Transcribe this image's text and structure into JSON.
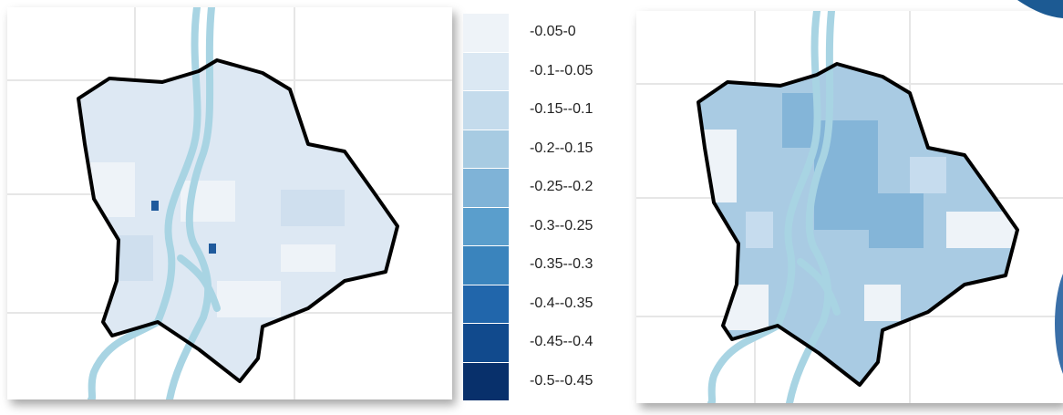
{
  "maps": [
    {
      "name": "left-map",
      "fill_base": "#dde8f3",
      "fill_light": "#eef3f8",
      "fill_mid": "#cfdfee",
      "accent_cells": "#1f5a9c"
    },
    {
      "name": "right-map",
      "fill_base": "#a9cbe3",
      "fill_light": "#eef3f8",
      "fill_mid": "#c6dcee",
      "fill_dark": "#84b5d8",
      "accent_cells": "#eef3f8"
    }
  ],
  "river_color": "#a8d4e3",
  "border_color": "#000000",
  "legend": {
    "items": [
      {
        "label": "-0.05-0",
        "color": "#eef3f8"
      },
      {
        "label": "-0.1--0.05",
        "color": "#dbe8f3"
      },
      {
        "label": "-0.15--0.1",
        "color": "#c4dbec"
      },
      {
        "label": "-0.2--0.15",
        "color": "#a7cbe2"
      },
      {
        "label": "-0.25--0.2",
        "color": "#7fb3d7"
      },
      {
        "label": "-0.3--0.25",
        "color": "#5a9ecc"
      },
      {
        "label": "-0.35--0.3",
        "color": "#3a84bd"
      },
      {
        "label": "-0.4--0.35",
        "color": "#2166ab"
      },
      {
        "label": "-0.45--0.4",
        "color": "#114a8d"
      },
      {
        "label": "-0.5--0.45",
        "color": "#08306b"
      }
    ]
  }
}
